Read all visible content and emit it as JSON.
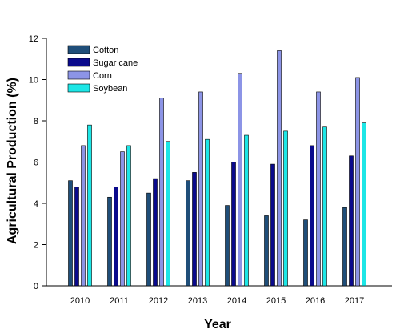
{
  "chart_data": {
    "type": "bar",
    "title": "",
    "xlabel": "Year",
    "ylabel": "Agricultural Production (%)",
    "categories": [
      "2010",
      "2011",
      "2012",
      "2013",
      "2014",
      "2015",
      "2016",
      "2017"
    ],
    "ylim": [
      0,
      12
    ],
    "yticks": [
      "0",
      "2",
      "4",
      "6",
      "8",
      "10",
      "12"
    ],
    "grid": false,
    "legend_position": "top-left",
    "series": [
      {
        "name": "Cotton",
        "color": "#1f4e79",
        "values": [
          5.1,
          4.3,
          4.5,
          5.1,
          3.9,
          3.4,
          3.2,
          3.8
        ]
      },
      {
        "name": "Sugar cane",
        "color": "#0a0a8c",
        "values": [
          4.8,
          4.8,
          5.2,
          5.5,
          6.0,
          5.9,
          6.8,
          6.3
        ]
      },
      {
        "name": "Corn",
        "color": "#8c94e6",
        "values": [
          6.8,
          6.5,
          9.1,
          9.4,
          10.3,
          11.4,
          9.4,
          10.1
        ]
      },
      {
        "name": "Soybean",
        "color": "#1de6e6",
        "values": [
          7.8,
          6.8,
          7.0,
          7.1,
          7.3,
          7.5,
          7.7,
          7.9
        ]
      }
    ]
  }
}
